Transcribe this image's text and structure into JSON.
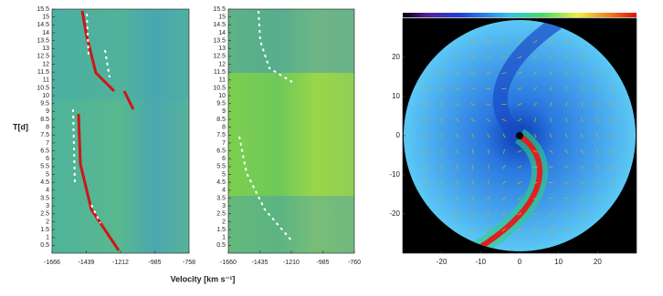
{
  "chart_data": [
    {
      "type": "heatmap",
      "ylabel": "T[d]",
      "xlabel": "Velocity [km s⁻¹]",
      "xlim": [
        -1666,
        -758
      ],
      "xticks": [
        -1666,
        -1439,
        -1212,
        -985,
        -758
      ],
      "ylim": [
        0,
        15.5
      ],
      "yticks": [
        0.5,
        1,
        1.5,
        2,
        2.5,
        3,
        3.5,
        4,
        4.5,
        5,
        5.5,
        6,
        6.5,
        7,
        7.5,
        8,
        8.5,
        9,
        9.5,
        10,
        10.5,
        11,
        11.5,
        12,
        12.5,
        13,
        13.5,
        14,
        14.5,
        15,
        15.5
      ]
    },
    {
      "type": "heatmap",
      "xlim": [
        -1660,
        -760
      ],
      "xticks": [
        -1660,
        -1435,
        -1210,
        -985,
        -760
      ],
      "ylim": [
        0,
        15.5
      ],
      "yticks": [
        0.5,
        1,
        1.5,
        2,
        2.5,
        3,
        3.5,
        4,
        4.5,
        5,
        5.5,
        6,
        6.5,
        7,
        7.5,
        8,
        8.5,
        9,
        9.5,
        10,
        10.5,
        11,
        11.5,
        12,
        12.5,
        13,
        13.5,
        14,
        14.5,
        15,
        15.5
      ]
    },
    {
      "type": "image",
      "xlim": [
        -30,
        30
      ],
      "xticks": [
        -20,
        -10,
        0,
        10,
        20
      ],
      "ylim": [
        -30,
        30
      ],
      "yticks": [
        20,
        10,
        0,
        -10,
        -20
      ]
    }
  ]
}
